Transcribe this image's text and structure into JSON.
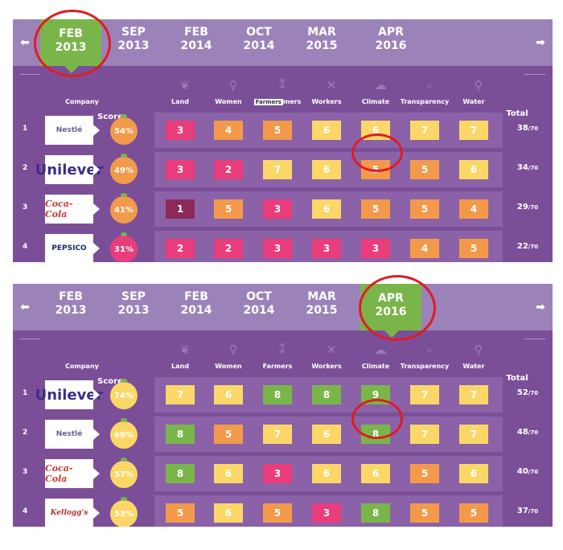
{
  "colors": {
    "active_date": "#7ab54a",
    "panel_bg": "#7b4f98",
    "timeline_bg": "#9b83b9",
    "annotation_circle": "#e01c22"
  },
  "score_colors": {
    "1": "#8d2958",
    "2": "#ea3d7b",
    "3": "#ea3d7b",
    "4": "#f39a4a",
    "5": "#f39a4a",
    "6": "#fbd768",
    "7": "#fbd768",
    "8": "#7ab54a",
    "9": "#7ab54a"
  },
  "column_icons": [
    "leaf-icon",
    "woman-icon",
    "wheat-icon",
    "tools-icon",
    "cloud-icon",
    "magnifier-icon",
    "tap-icon"
  ],
  "panels": [
    {
      "timeline": {
        "prev_arrow": "⬅",
        "next_arrow": "➡",
        "dates": [
          {
            "month": "FEB",
            "year": "2013",
            "active": true
          },
          {
            "month": "SEP",
            "year": "2013",
            "active": false
          },
          {
            "month": "FEB",
            "year": "2014",
            "active": false
          },
          {
            "month": "OCT",
            "year": "2014",
            "active": false
          },
          {
            "month": "MAR",
            "year": "2015",
            "active": false
          },
          {
            "month": "APR",
            "year": "2016",
            "active": false
          }
        ]
      },
      "headers": {
        "company": "Company",
        "score": "Score",
        "columns": [
          "Land",
          "Women",
          "Farmers",
          "Workers",
          "Climate",
          "Transparency",
          "Water"
        ],
        "total": "Total",
        "farmers_tooltip": "Farmers",
        "farmers_suffix": "mers"
      },
      "rows": [
        {
          "rank": "1",
          "company": "Nestlé",
          "logo": "nestle",
          "score": "54%",
          "score_color": "#f39a4a",
          "values": [
            3,
            4,
            5,
            6,
            6,
            7,
            7
          ],
          "total": "38",
          "total_max": "/70"
        },
        {
          "rank": "2",
          "company": "Unilever",
          "logo": "unilever",
          "score": "49%",
          "score_color": "#f39a4a",
          "values": [
            3,
            2,
            7,
            6,
            5,
            5,
            6
          ],
          "total": "34",
          "total_max": "/70"
        },
        {
          "rank": "3",
          "company": "Coca-Cola",
          "logo": "coca",
          "score": "41%",
          "score_color": "#f39a4a",
          "values": [
            1,
            5,
            3,
            6,
            5,
            5,
            4
          ],
          "total": "29",
          "total_max": "/70"
        },
        {
          "rank": "4",
          "company": "PEPSICO",
          "logo": "pepsico",
          "score": "31%",
          "score_color": "#ea3d7b",
          "values": [
            2,
            2,
            3,
            3,
            3,
            4,
            5
          ],
          "total": "22",
          "total_max": "/70"
        }
      ]
    },
    {
      "timeline": {
        "prev_arrow": "⬅",
        "next_arrow": "➡",
        "dates": [
          {
            "month": "FEB",
            "year": "2013",
            "active": false
          },
          {
            "month": "SEP",
            "year": "2013",
            "active": false
          },
          {
            "month": "FEB",
            "year": "2014",
            "active": false
          },
          {
            "month": "OCT",
            "year": "2014",
            "active": false
          },
          {
            "month": "MAR",
            "year": "2015",
            "active": false
          },
          {
            "month": "APR",
            "year": "2016",
            "active": true
          }
        ]
      },
      "headers": {
        "company": "Company",
        "score": "Score",
        "columns": [
          "Land",
          "Women",
          "Farmers",
          "Workers",
          "Climate",
          "Transparency",
          "Water"
        ],
        "total": "Total",
        "farmers_tooltip": "",
        "farmers_suffix": ""
      },
      "rows": [
        {
          "rank": "1",
          "company": "Unilever",
          "logo": "unilever",
          "score": "74%",
          "score_color": "#fbd768",
          "values": [
            7,
            6,
            8,
            8,
            9,
            7,
            7
          ],
          "total": "52",
          "total_max": "/70"
        },
        {
          "rank": "2",
          "company": "Nestlé",
          "logo": "nestle",
          "score": "69%",
          "score_color": "#fbd768",
          "values": [
            8,
            5,
            7,
            6,
            8,
            7,
            7
          ],
          "total": "48",
          "total_max": "/70"
        },
        {
          "rank": "3",
          "company": "Coca-Cola",
          "logo": "coca",
          "score": "57%",
          "score_color": "#fbd768",
          "values": [
            8,
            6,
            3,
            6,
            6,
            5,
            6
          ],
          "total": "40",
          "total_max": "/70"
        },
        {
          "rank": "4",
          "company": "Kellogg's",
          "logo": "kellogg",
          "score": "53%",
          "score_color": "#fbd768",
          "values": [
            5,
            6,
            5,
            3,
            8,
            5,
            5
          ],
          "total": "37",
          "total_max": "/70"
        }
      ]
    }
  ]
}
